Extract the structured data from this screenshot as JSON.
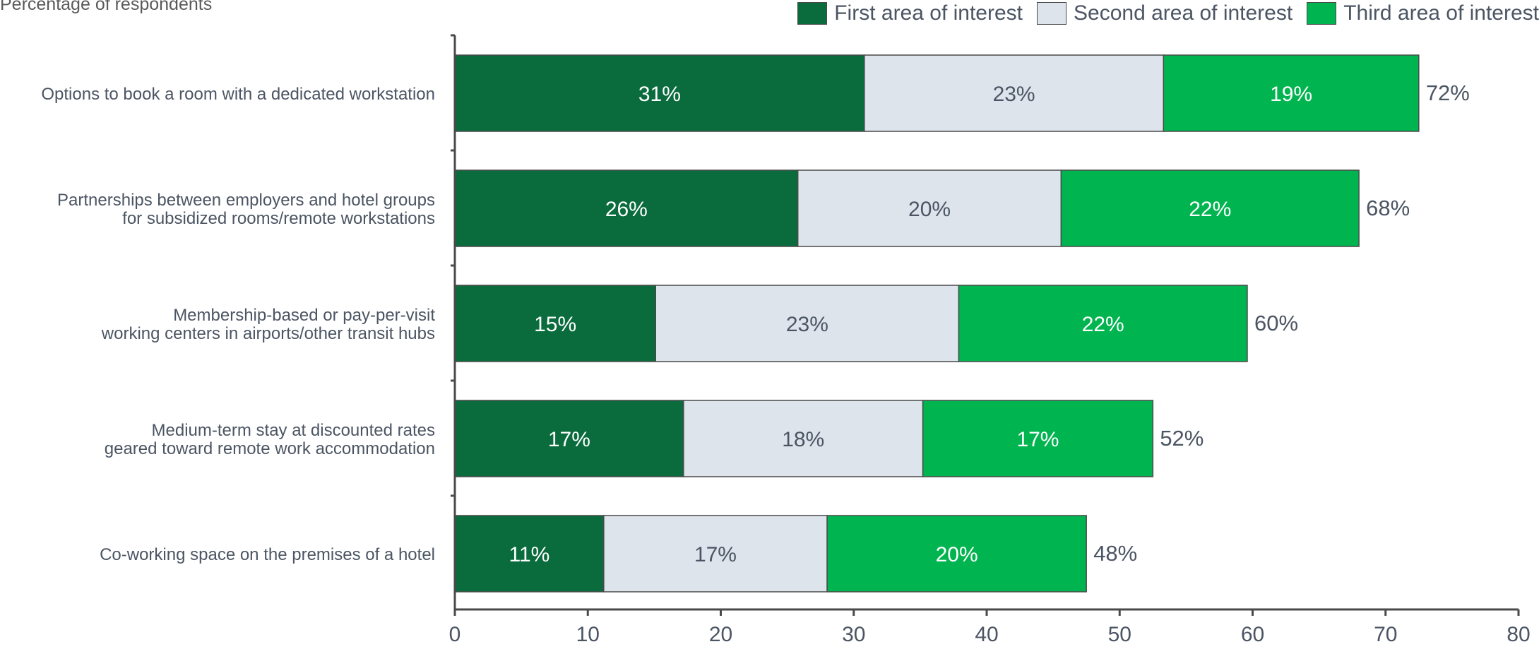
{
  "chart_data": {
    "type": "bar",
    "orientation": "horizontal",
    "stacked": true,
    "subtitle": "Percentage of respondents",
    "categories": [
      [
        "Options to book a room with a dedicated workstation"
      ],
      [
        "Partnerships between employers and hotel groups",
        "for subsidized rooms/remote workstations"
      ],
      [
        "Membership-based or pay-per-visit",
        "working centers in airports/other transit hubs"
      ],
      [
        "Medium-term stay at discounted rates",
        "geared toward remote work accommodation"
      ],
      [
        "Co-working space on the premises of a hotel"
      ]
    ],
    "series": [
      {
        "name": "First area of interest",
        "color": "#0a6b3d",
        "label_color": "#ffffff",
        "values": [
          30.8,
          25.8,
          15.1,
          17.2,
          11.2
        ],
        "labels": [
          "31%",
          "26%",
          "15%",
          "17%",
          "11%"
        ]
      },
      {
        "name": "Second area of interest",
        "color": "#dde4ec",
        "label_color": "#4b5563",
        "values": [
          22.5,
          19.8,
          22.8,
          18.0,
          16.8
        ],
        "labels": [
          "23%",
          "20%",
          "23%",
          "18%",
          "17%"
        ]
      },
      {
        "name": "Third area of interest",
        "color": "#00b44f",
        "label_color": "#ffffff",
        "values": [
          19.2,
          22.4,
          21.7,
          17.3,
          19.5
        ],
        "labels": [
          "19%",
          "22%",
          "22%",
          "17%",
          "20%"
        ]
      }
    ],
    "totals": [
      72.5,
      68.0,
      59.6,
      52.5,
      47.5
    ],
    "total_labels": [
      "72%",
      "68%",
      "60%",
      "52%",
      "48%"
    ],
    "xlim": [
      0,
      80
    ],
    "xticks": [
      "0",
      "10",
      "20",
      "30",
      "40",
      "50",
      "60",
      "70",
      "80"
    ],
    "grid": false,
    "legend_position": "top-right"
  }
}
